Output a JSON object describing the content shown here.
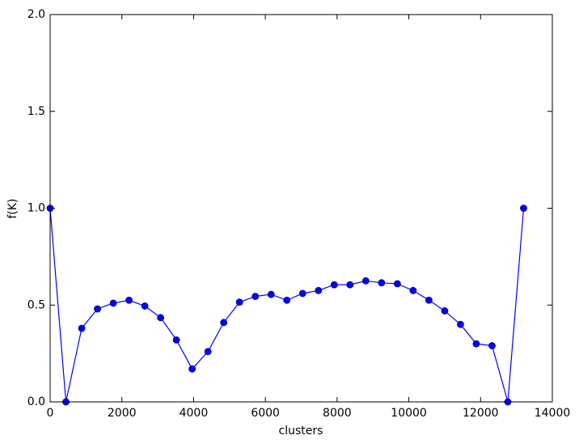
{
  "chart_data": {
    "type": "line",
    "xlabel": "clusters",
    "ylabel": "f(K)",
    "x": [
      0,
      440,
      880,
      1320,
      1760,
      2200,
      2640,
      3080,
      3520,
      3960,
      4400,
      4840,
      5280,
      5720,
      6160,
      6600,
      7040,
      7480,
      7920,
      8360,
      8800,
      9240,
      9680,
      10120,
      10560,
      11000,
      11440,
      11880,
      12320,
      12760,
      13200
    ],
    "series": [
      {
        "color": "#0000ff",
        "values": [
          1.0,
          0.0,
          0.38,
          0.48,
          0.51,
          0.525,
          0.495,
          0.435,
          0.32,
          0.17,
          0.26,
          0.41,
          0.515,
          0.545,
          0.555,
          0.525,
          0.56,
          0.575,
          0.605,
          0.605,
          0.625,
          0.615,
          0.61,
          0.575,
          0.525,
          0.47,
          0.4,
          0.3,
          0.29,
          0.0,
          1.0
        ]
      }
    ],
    "xlim": [
      0,
      14000
    ],
    "xticks": [
      0,
      2000,
      4000,
      6000,
      8000,
      10000,
      12000,
      14000
    ],
    "ylim": [
      0,
      2
    ],
    "yticks": [
      {
        "value": 0,
        "label": "0.0"
      },
      {
        "value": 0.5,
        "label": "0.5"
      },
      {
        "value": 1,
        "label": "1.0"
      },
      {
        "value": 1.5,
        "label": "1.5"
      },
      {
        "value": 2,
        "label": "2.0"
      }
    ],
    "grid": false
  }
}
